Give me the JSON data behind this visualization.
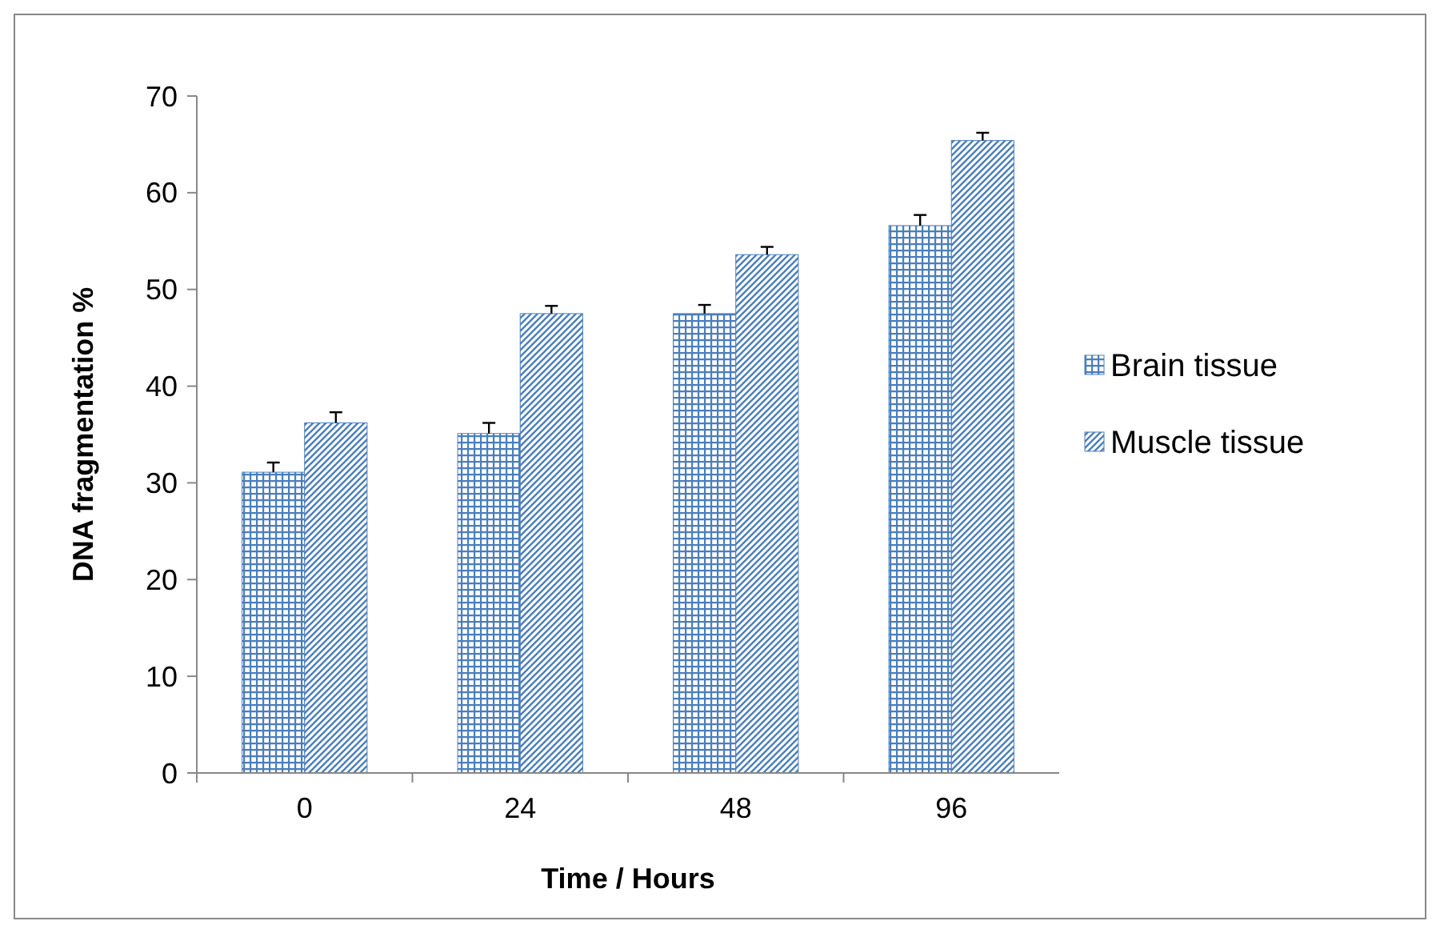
{
  "chart_data": {
    "type": "bar",
    "xlabel": "Time / Hours",
    "ylabel": "DNA fragmentation %",
    "categories": [
      "0",
      "24",
      "48",
      "96"
    ],
    "series": [
      {
        "name": "Brain tissue",
        "color": "#4a7ebb",
        "values": [
          31.1,
          35.1,
          47.5,
          56.6
        ],
        "errors": [
          [
            31.1,
            32.1
          ],
          [
            35.1,
            36.2
          ],
          [
            47.5,
            48.4
          ],
          [
            56.6,
            57.7
          ]
        ]
      },
      {
        "name": "Muscle tissue",
        "color": "#4a7ebb",
        "values": [
          36.2,
          47.5,
          53.6,
          65.4
        ],
        "errors": [
          [
            36.2,
            37.3
          ],
          [
            47.5,
            48.3
          ],
          [
            53.6,
            54.4
          ],
          [
            65.4,
            66.2
          ]
        ]
      }
    ],
    "ylim": [
      0,
      70
    ],
    "yticks": [
      0,
      10,
      20,
      30,
      40,
      50,
      60,
      70
    ],
    "grid": false,
    "legend": "right"
  }
}
